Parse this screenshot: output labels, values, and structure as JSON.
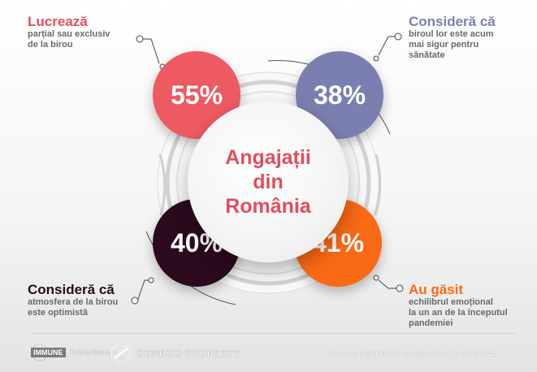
{
  "center": {
    "line1": "Angajații",
    "line2": "din",
    "line3": "România"
  },
  "stats": [
    {
      "value": "55%",
      "title": "Lucrează",
      "text": [
        "parțial sau exclusiv",
        "de la birou"
      ],
      "color": "#ee5a62"
    },
    {
      "value": "38%",
      "title": "Consideră că",
      "text": [
        "biroul lor este acum",
        "mai sigur pentru",
        "sănătate"
      ],
      "color": "#7b7fb0"
    },
    {
      "value": "40%",
      "title": "Consideră că",
      "text": [
        "atmosfera de la birou",
        "este optimistă"
      ],
      "color": "#2b0a1e"
    },
    {
      "value": "41%",
      "title": "Au găsit",
      "text": [
        "echilibrul emoțional",
        "la un an de la începutul",
        "pandemiei"
      ],
      "color": "#fa6a14"
    }
  ],
  "title_colors": {
    "lucreaza": "#e44d5e",
    "considera_top": "#7b7fb0",
    "considera_bottom": "#2b0a1e",
    "au_gasit": "#fa6a14"
  },
  "footer": {
    "immune_logo": "IMMUNE",
    "immune_tagline": "Building Standard",
    "genesis_logo": "GENESIS PROPERTY",
    "source": "Sursa: sondaj inițiat de Genesis Property, martie 2021"
  }
}
